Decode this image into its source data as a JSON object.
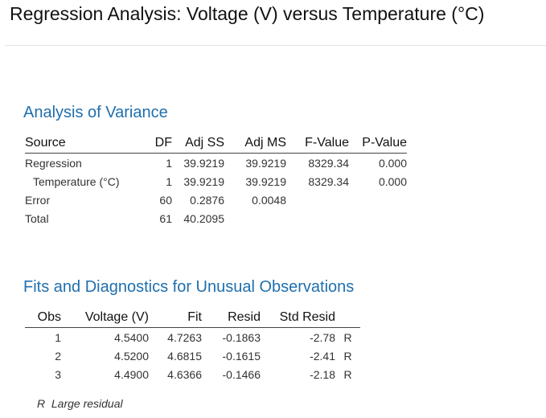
{
  "title": "Regression Analysis: Voltage (V) versus Temperature (°C)",
  "anova": {
    "title": "Analysis of Variance",
    "headers": [
      "Source",
      "DF",
      "Adj SS",
      "Adj MS",
      "F-Value",
      "P-Value"
    ],
    "rows": [
      {
        "source": "Regression",
        "df": "1",
        "adj_ss": "39.9219",
        "adj_ms": "39.9219",
        "f_value": "8329.34",
        "p_value": "0.000"
      },
      {
        "source": "Temperature (°C)",
        "df": "1",
        "adj_ss": "39.9219",
        "adj_ms": "39.9219",
        "f_value": "8329.34",
        "p_value": "0.000"
      },
      {
        "source": "Error",
        "df": "60",
        "adj_ss": "0.2876",
        "adj_ms": "0.0048",
        "f_value": "",
        "p_value": ""
      },
      {
        "source": "Total",
        "df": "61",
        "adj_ss": "40.2095",
        "adj_ms": "",
        "f_value": "",
        "p_value": ""
      }
    ]
  },
  "fits": {
    "title": "Fits and Diagnostics for Unusual Observations",
    "headers": [
      "Obs",
      "Voltage (V)",
      "Fit",
      "Resid",
      "Std Resid",
      ""
    ],
    "rows": [
      {
        "obs": "1",
        "voltage": "4.5400",
        "fit": "4.7263",
        "resid": "-0.1863",
        "std_resid": "-2.78",
        "flag": "R"
      },
      {
        "obs": "2",
        "voltage": "4.5200",
        "fit": "4.6815",
        "resid": "-0.1615",
        "std_resid": "-2.41",
        "flag": "R"
      },
      {
        "obs": "3",
        "voltage": "4.4900",
        "fit": "4.6366",
        "resid": "-0.1466",
        "std_resid": "-2.18",
        "flag": "R"
      }
    ],
    "footnote": "R  Large residual"
  }
}
